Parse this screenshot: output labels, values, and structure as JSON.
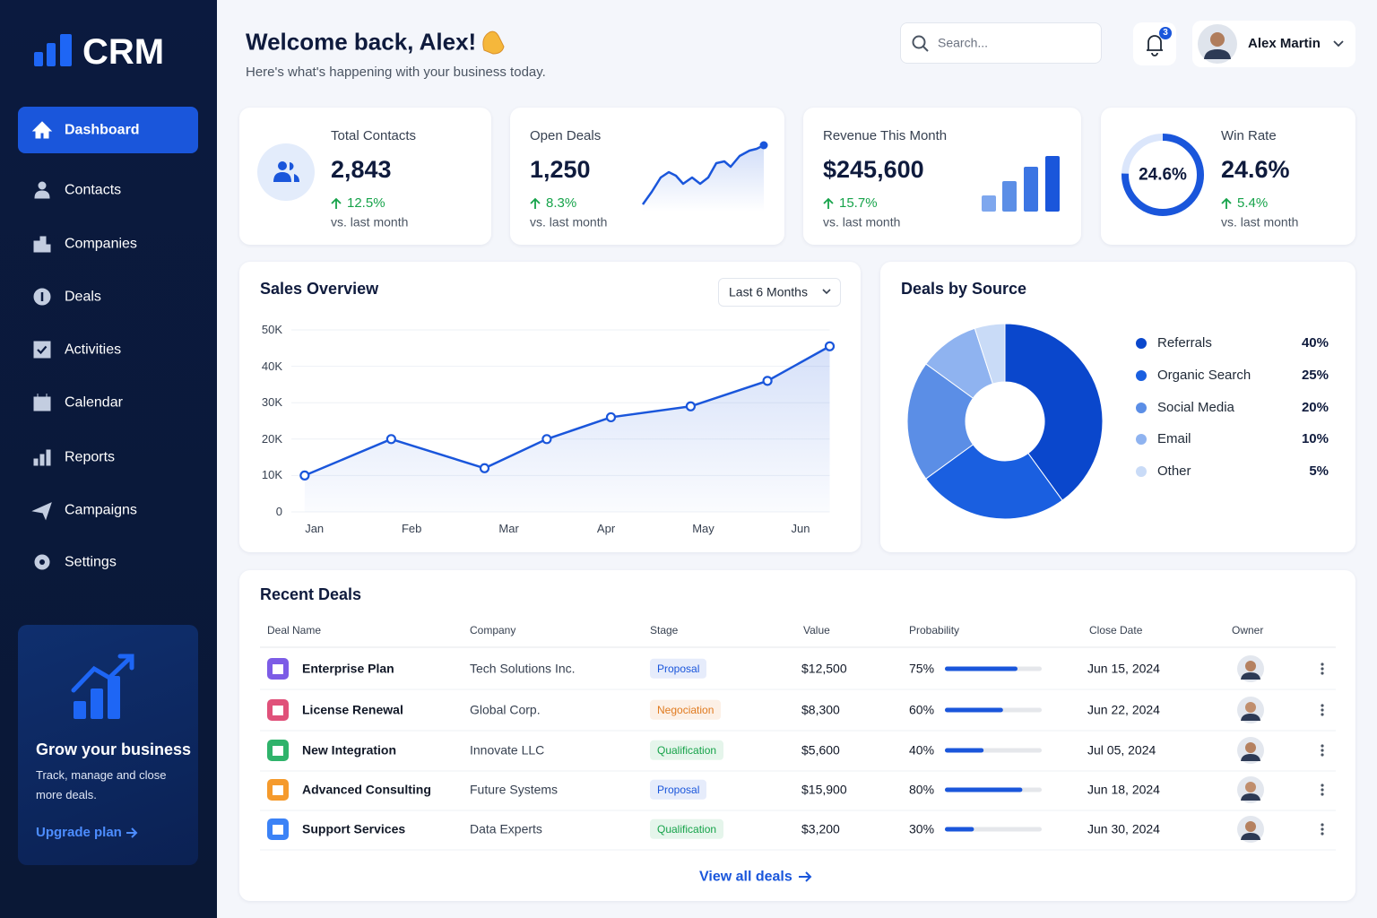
{
  "sidebar": {
    "logo": "CRM",
    "nav": [
      "Dashboard",
      "Contacts",
      "Companies",
      "Deals",
      "Activities",
      "Calendar",
      "Reports",
      "Campaigns",
      "Settings"
    ],
    "promo": {
      "title": "Grow your business",
      "text": "Track, manage and close more deals.",
      "link": "Upgrade plan"
    }
  },
  "header": {
    "title": "Welcome back, Alex!",
    "subtitle": "Here's what's happening with your business today.",
    "search_placeholder": "Search...",
    "notifications": 3,
    "user": "Alex Martin"
  },
  "kpis": [
    {
      "label": "Total Contacts",
      "value": "2,843",
      "change": "12.5%",
      "note": "vs. last month"
    },
    {
      "label": "Open Deals",
      "value": "1,250",
      "change": "8.3%",
      "note": "vs. last month"
    },
    {
      "label": "Revenue This Month",
      "value": "$245,600",
      "change": "15.7%",
      "note": "vs. last month"
    },
    {
      "label": "Win Rate",
      "value": "24.6%",
      "ring": 24.6,
      "change": "5.4%",
      "note": "vs. last month"
    }
  ],
  "chart_data": [
    {
      "type": "line",
      "title": "Sales Overview",
      "period": "Last 6 Months",
      "color": "#1a56db",
      "x": [
        -0.1,
        0.79,
        1.75,
        2.39,
        3.05,
        3.87,
        4.66,
        5.3
      ],
      "values": [
        10000,
        20000,
        12000,
        20000,
        26000,
        29000,
        36000,
        45500
      ],
      "xlim": [
        -0.2,
        5.3
      ],
      "xticks": [
        {
          "value": 0,
          "label": "Jan"
        },
        {
          "value": 1,
          "label": "Feb"
        },
        {
          "value": 2,
          "label": "Mar"
        },
        {
          "value": 3,
          "label": "Apr"
        },
        {
          "value": 4,
          "label": "May"
        },
        {
          "value": 5,
          "label": "Jun"
        }
      ],
      "ylim": [
        0,
        50000
      ],
      "yticks": [
        0,
        {
          "value": 10000,
          "label": "10K"
        },
        {
          "value": 20000,
          "label": "20K"
        },
        {
          "value": 30000,
          "label": "30K"
        },
        {
          "value": 40000,
          "label": "40K"
        },
        {
          "value": 50000,
          "label": "50K"
        }
      ],
      "grid": true
    },
    {
      "type": "pie",
      "title": "Deals by Source",
      "categories": [
        "Referrals",
        "Organic Search",
        "Social Media",
        "Email",
        "Other"
      ],
      "values": [
        40,
        25,
        20,
        10,
        5
      ],
      "value_labels": [
        "40%",
        "25%",
        "20%",
        "10%",
        "5%"
      ],
      "colors": [
        "#0a47cc",
        "#1a5fe0",
        "#5b8ee6",
        "#8fb3f0",
        "#c9dbf7"
      ]
    }
  ],
  "table": {
    "title": "Recent Deals",
    "columns": [
      "Deal Name",
      "Company",
      "Stage",
      "Value",
      "Probability",
      "Close Date",
      "Owner"
    ],
    "rows": [
      {
        "deal": "Enterprise Plan",
        "company": "Tech Solutions Inc.",
        "stage": "Proposal",
        "stage_color": "#1a56db",
        "value": "$12,500",
        "probability": 75,
        "probability_label": "75%",
        "close_date": "Jun 15, 2024"
      },
      {
        "deal": "License Renewal",
        "company": "Global Corp.",
        "stage": "Negociation",
        "stage_color": "#e07a1f",
        "value": "$8,300",
        "probability": 60,
        "probability_label": "60%",
        "close_date": "Jun 22, 2024"
      },
      {
        "deal": "New Integration",
        "company": "Innovate LLC",
        "stage": "Qualification",
        "stage_color": "#16a34a",
        "value": "$5,600",
        "probability": 40,
        "probability_label": "40%",
        "close_date": "Jul 05, 2024"
      },
      {
        "deal": "Advanced Consulting",
        "company": "Future Systems",
        "stage": "Proposal",
        "stage_color": "#1a56db",
        "value": "$15,900",
        "probability": 80,
        "probability_label": "80%",
        "close_date": "Jun 18, 2024"
      },
      {
        "deal": "Support Services",
        "company": "Data Experts",
        "stage": "Qualification",
        "stage_color": "#16a34a",
        "value": "$3,200",
        "probability": 30,
        "probability_label": "30%",
        "close_date": "Jun 30, 2024"
      }
    ],
    "footer_link": "View all deals"
  }
}
